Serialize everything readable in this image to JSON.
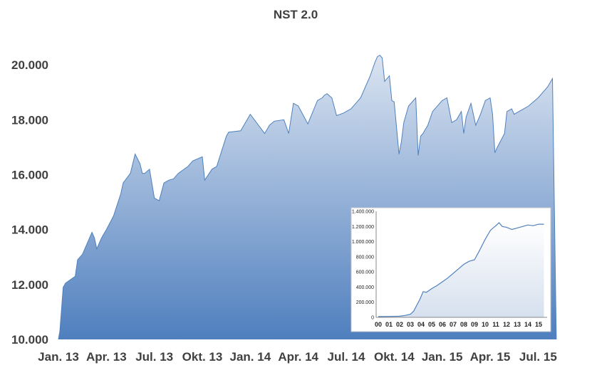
{
  "chart_data": [
    {
      "type": "area",
      "title": "NST 2.0",
      "xlabel": "",
      "ylabel": "",
      "ylim": [
        10000,
        20600
      ],
      "y_ticks": [
        "10.000",
        "12.000",
        "14.000",
        "16.000",
        "18.000",
        "20.000"
      ],
      "y_tick_values": [
        10000,
        12000,
        14000,
        16000,
        18000,
        20000
      ],
      "x_ticks": [
        "Jan. 13",
        "Apr. 13",
        "Jul. 13",
        "Okt. 13",
        "Jan. 14",
        "Apr. 14",
        "Jul. 14",
        "Okt. 14",
        "Jan. 15",
        "Apr. 15",
        "Jul. 15"
      ],
      "x_range": [
        0,
        10.5
      ],
      "grid": false,
      "colors": {
        "fill_top": "#dbe4f1",
        "fill_bottom": "#4f7fbe",
        "line": "#4f81bd"
      },
      "series": [
        {
          "x": [
            0.0,
            0.03,
            0.1,
            0.15,
            0.35,
            0.4,
            0.5,
            0.7,
            0.75,
            0.8,
            0.85,
            0.9,
            1.0,
            1.15,
            1.3,
            1.35,
            1.5,
            1.6,
            1.7,
            1.75,
            1.8,
            1.9,
            2.0,
            2.1,
            2.2,
            2.3,
            2.4,
            2.5,
            2.7,
            2.8,
            3.0,
            3.05,
            3.2,
            3.3,
            3.5,
            3.55,
            3.8,
            4.0,
            4.3,
            4.4,
            4.5,
            4.7,
            4.8,
            4.9,
            5.0,
            5.2,
            5.4,
            5.5,
            5.55,
            5.6,
            5.7,
            5.8,
            5.95,
            6.1,
            6.3,
            6.4,
            6.5,
            6.6,
            6.65,
            6.7,
            6.75,
            6.8,
            6.9,
            6.95,
            7.0,
            7.1,
            7.15,
            7.2,
            7.3,
            7.45,
            7.5,
            7.55,
            7.6,
            7.7,
            7.8,
            8.0,
            8.1,
            8.2,
            8.3,
            8.4,
            8.45,
            8.5,
            8.6,
            8.7,
            8.75,
            8.8,
            8.9,
            9.0,
            9.05,
            9.1,
            9.15,
            9.3,
            9.35,
            9.45,
            9.5,
            9.6,
            9.7,
            9.8,
            10.0,
            10.1,
            10.2,
            10.3,
            10.38
          ],
          "y": [
            10000,
            10300,
            11900,
            12050,
            12300,
            12900,
            13100,
            13900,
            13700,
            13300,
            13500,
            13700,
            14000,
            14500,
            15300,
            15700,
            16050,
            16750,
            16400,
            16050,
            16050,
            16200,
            15150,
            15050,
            15700,
            15800,
            15850,
            16050,
            16300,
            16500,
            16650,
            15800,
            16200,
            16300,
            17400,
            17550,
            17600,
            18200,
            17500,
            17800,
            17950,
            18000,
            17500,
            18600,
            18500,
            17850,
            18700,
            18800,
            18900,
            18950,
            18800,
            18150,
            18250,
            18400,
            18800,
            19200,
            19600,
            20100,
            20300,
            20350,
            20250,
            19400,
            19600,
            18700,
            18650,
            16750,
            17200,
            17900,
            18500,
            18800,
            16700,
            17400,
            17500,
            17800,
            18300,
            18700,
            18800,
            17900,
            18000,
            18300,
            17500,
            18100,
            18600,
            17800,
            18000,
            18200,
            18700,
            18800,
            18200,
            16800,
            17000,
            17500,
            18300,
            18400,
            18200,
            18300,
            18400,
            18500,
            18800,
            19000,
            19200,
            19500,
            10000
          ]
        }
      ]
    },
    {
      "type": "line",
      "title": "",
      "xlabel": "",
      "ylabel": "",
      "ylim": [
        0,
        1400000
      ],
      "y_ticks": [
        "0",
        "200.000",
        "400.000",
        "600.000",
        "800.000",
        "1.000.000",
        "1.200.000",
        "1.400.000"
      ],
      "y_tick_values": [
        0,
        200000,
        400000,
        600000,
        800000,
        1000000,
        1200000,
        1400000
      ],
      "x_ticks": [
        "00",
        "01",
        "02",
        "03",
        "04",
        "05",
        "06",
        "07",
        "08",
        "09",
        "10",
        "11",
        "12",
        "13",
        "14",
        "15"
      ],
      "x_range": [
        -0.2,
        15.8
      ],
      "grid": false,
      "colors": {
        "fill_top": "#ffffff",
        "fill_bottom": "#d6e0ee",
        "line": "#4f81bd"
      },
      "series": [
        {
          "x": [
            0,
            1,
            2,
            2.5,
            3,
            3.3,
            3.6,
            3.9,
            4.2,
            4.5,
            5,
            5.5,
            6,
            6.5,
            7,
            7.5,
            8,
            8.5,
            9,
            9.5,
            10,
            10.5,
            11,
            11.3,
            11.6,
            12,
            12.5,
            13,
            13.5,
            14,
            14.5,
            15,
            15.5
          ],
          "y": [
            10000,
            12000,
            15000,
            25000,
            40000,
            80000,
            160000,
            240000,
            340000,
            330000,
            380000,
            420000,
            470000,
            520000,
            580000,
            640000,
            700000,
            740000,
            760000,
            890000,
            1030000,
            1150000,
            1210000,
            1250000,
            1200000,
            1190000,
            1160000,
            1180000,
            1200000,
            1220000,
            1210000,
            1230000,
            1230000
          ]
        }
      ]
    }
  ]
}
